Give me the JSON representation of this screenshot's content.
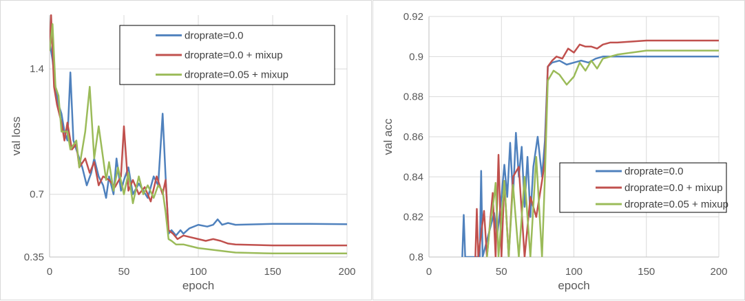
{
  "chart_data": [
    {
      "type": "line",
      "xlabel": "epoch",
      "ylabel": "val loss",
      "xlim": [
        0,
        200
      ],
      "ylim": [
        0.35,
        1.7
      ],
      "x_ticks": [
        "0",
        "50",
        "100",
        "150",
        "200"
      ],
      "y_ticks": [
        "0.35",
        "0.7",
        "1.4"
      ],
      "x_tick_values": [
        0,
        50,
        100,
        150,
        200
      ],
      "y_tick_values": [
        0.35,
        0.7,
        1.4
      ],
      "grid": true,
      "legend_position": "top-right",
      "series": [
        {
          "name": "droprate=0.0",
          "color": "#4f81bd",
          "points": [
            [
              0,
              1.55
            ],
            [
              2,
              1.45
            ],
            [
              4,
              1.3
            ],
            [
              6,
              1.2
            ],
            [
              8,
              1.15
            ],
            [
              10,
              1.05
            ],
            [
              12,
              1.0
            ],
            [
              14,
              1.38
            ],
            [
              16,
              1.0
            ],
            [
              18,
              0.95
            ],
            [
              20,
              0.9
            ],
            [
              22,
              0.85
            ],
            [
              25,
              0.75
            ],
            [
              28,
              0.82
            ],
            [
              30,
              0.9
            ],
            [
              33,
              0.8
            ],
            [
              36,
              0.75
            ],
            [
              38,
              0.68
            ],
            [
              40,
              0.8
            ],
            [
              43,
              0.7
            ],
            [
              45,
              0.9
            ],
            [
              48,
              0.72
            ],
            [
              50,
              0.78
            ],
            [
              53,
              0.85
            ],
            [
              56,
              0.7
            ],
            [
              60,
              0.76
            ],
            [
              63,
              0.72
            ],
            [
              66,
              0.68
            ],
            [
              70,
              0.8
            ],
            [
              73,
              0.75
            ],
            [
              76,
              1.15
            ],
            [
              78,
              0.8
            ],
            [
              80,
              0.48
            ],
            [
              82,
              0.5
            ],
            [
              85,
              0.47
            ],
            [
              88,
              0.5
            ],
            [
              90,
              0.48
            ],
            [
              94,
              0.51
            ],
            [
              100,
              0.53
            ],
            [
              106,
              0.52
            ],
            [
              110,
              0.53
            ],
            [
              113,
              0.56
            ],
            [
              116,
              0.53
            ],
            [
              120,
              0.54
            ],
            [
              125,
              0.53
            ],
            [
              150,
              0.535
            ],
            [
              175,
              0.535
            ],
            [
              200,
              0.533
            ]
          ]
        },
        {
          "name": "droprate=0.0 + mixup",
          "color": "#c0504d",
          "points": [
            [
              0,
              1.5
            ],
            [
              1,
              1.7
            ],
            [
              3,
              1.3
            ],
            [
              5,
              1.2
            ],
            [
              8,
              1.1
            ],
            [
              10,
              1.0
            ],
            [
              12,
              1.1
            ],
            [
              15,
              0.95
            ],
            [
              18,
              0.98
            ],
            [
              20,
              0.85
            ],
            [
              24,
              0.9
            ],
            [
              27,
              0.82
            ],
            [
              30,
              0.88
            ],
            [
              33,
              0.75
            ],
            [
              36,
              0.8
            ],
            [
              40,
              0.78
            ],
            [
              44,
              0.74
            ],
            [
              48,
              0.8
            ],
            [
              50,
              1.08
            ],
            [
              53,
              0.72
            ],
            [
              56,
              0.78
            ],
            [
              60,
              0.7
            ],
            [
              64,
              0.74
            ],
            [
              68,
              0.66
            ],
            [
              72,
              0.8
            ],
            [
              76,
              0.7
            ],
            [
              78,
              0.78
            ],
            [
              80,
              0.5
            ],
            [
              83,
              0.48
            ],
            [
              86,
              0.45
            ],
            [
              90,
              0.47
            ],
            [
              95,
              0.46
            ],
            [
              100,
              0.45
            ],
            [
              105,
              0.44
            ],
            [
              110,
              0.45
            ],
            [
              115,
              0.44
            ],
            [
              120,
              0.425
            ],
            [
              125,
              0.42
            ],
            [
              150,
              0.415
            ],
            [
              175,
              0.415
            ],
            [
              200,
              0.415
            ]
          ]
        },
        {
          "name": "droprate=0.05 + mixup",
          "color": "#9bbb59",
          "points": [
            [
              0,
              1.5
            ],
            [
              2,
              1.65
            ],
            [
              4,
              1.3
            ],
            [
              6,
              1.25
            ],
            [
              8,
              1.05
            ],
            [
              10,
              1.05
            ],
            [
              12,
              1.05
            ],
            [
              14,
              0.95
            ],
            [
              18,
              1.0
            ],
            [
              20,
              0.85
            ],
            [
              24,
              1.05
            ],
            [
              27,
              1.3
            ],
            [
              30,
              0.9
            ],
            [
              33,
              1.08
            ],
            [
              36,
              0.9
            ],
            [
              38,
              0.78
            ],
            [
              40,
              0.88
            ],
            [
              43,
              0.72
            ],
            [
              46,
              0.85
            ],
            [
              50,
              0.7
            ],
            [
              53,
              0.82
            ],
            [
              56,
              0.65
            ],
            [
              60,
              0.8
            ],
            [
              63,
              0.7
            ],
            [
              66,
              0.75
            ],
            [
              70,
              0.68
            ],
            [
              73,
              0.75
            ],
            [
              76,
              0.72
            ],
            [
              78,
              0.6
            ],
            [
              80,
              0.45
            ],
            [
              82,
              0.44
            ],
            [
              85,
              0.42
            ],
            [
              90,
              0.42
            ],
            [
              95,
              0.41
            ],
            [
              100,
              0.4
            ],
            [
              110,
              0.39
            ],
            [
              120,
              0.38
            ],
            [
              125,
              0.375
            ],
            [
              150,
              0.37
            ],
            [
              175,
              0.37
            ],
            [
              200,
              0.37
            ]
          ]
        }
      ]
    },
    {
      "type": "line",
      "xlabel": "epoch",
      "ylabel": "val acc",
      "xlim": [
        0,
        200
      ],
      "ylim": [
        0.8,
        0.92
      ],
      "x_ticks": [
        "0",
        "50",
        "100",
        "150",
        "200"
      ],
      "y_ticks": [
        "0.8",
        "0.82",
        "0.84",
        "0.86",
        "0.88",
        "0.9",
        "0.92"
      ],
      "x_tick_values": [
        0,
        50,
        100,
        150,
        200
      ],
      "y_tick_values": [
        0.8,
        0.82,
        0.84,
        0.86,
        0.88,
        0.9,
        0.92
      ],
      "grid": true,
      "legend_position": "bottom-right",
      "series": [
        {
          "name": "droprate=0.0",
          "color": "#4f81bd",
          "points": [
            [
              23,
              0.8
            ],
            [
              24,
              0.821
            ],
            [
              25,
              0.8
            ],
            [
              35,
              0.8
            ],
            [
              36,
              0.843
            ],
            [
              37,
              0.8
            ],
            [
              45,
              0.822
            ],
            [
              47,
              0.81
            ],
            [
              50,
              0.83
            ],
            [
              52,
              0.846
            ],
            [
              54,
              0.83
            ],
            [
              56,
              0.857
            ],
            [
              58,
              0.83
            ],
            [
              60,
              0.862
            ],
            [
              62,
              0.84
            ],
            [
              64,
              0.855
            ],
            [
              66,
              0.825
            ],
            [
              68,
              0.85
            ],
            [
              70,
              0.82
            ],
            [
              72,
              0.845
            ],
            [
              75,
              0.86
            ],
            [
              78,
              0.84
            ],
            [
              80,
              0.858
            ],
            [
              82,
              0.895
            ],
            [
              85,
              0.897
            ],
            [
              90,
              0.898
            ],
            [
              95,
              0.896
            ],
            [
              100,
              0.897
            ],
            [
              105,
              0.898
            ],
            [
              110,
              0.897
            ],
            [
              115,
              0.899
            ],
            [
              120,
              0.9
            ],
            [
              130,
              0.9
            ],
            [
              140,
              0.9
            ],
            [
              150,
              0.9
            ],
            [
              175,
              0.9
            ],
            [
              200,
              0.9
            ]
          ]
        },
        {
          "name": "droprate=0.0 + mixup",
          "color": "#c0504d",
          "points": [
            [
              32,
              0.8
            ],
            [
              33,
              0.824
            ],
            [
              34,
              0.8
            ],
            [
              38,
              0.823
            ],
            [
              40,
              0.8
            ],
            [
              44,
              0.832
            ],
            [
              46,
              0.8
            ],
            [
              48,
              0.851
            ],
            [
              50,
              0.8
            ],
            [
              52,
              0.838
            ],
            [
              55,
              0.8
            ],
            [
              58,
              0.84
            ],
            [
              62,
              0.845
            ],
            [
              66,
              0.8
            ],
            [
              70,
              0.83
            ],
            [
              74,
              0.82
            ],
            [
              78,
              0.838
            ],
            [
              80,
              0.848
            ],
            [
              82,
              0.895
            ],
            [
              85,
              0.898
            ],
            [
              88,
              0.9
            ],
            [
              92,
              0.899
            ],
            [
              96,
              0.904
            ],
            [
              100,
              0.902
            ],
            [
              104,
              0.906
            ],
            [
              108,
              0.905
            ],
            [
              112,
              0.905
            ],
            [
              116,
              0.904
            ],
            [
              120,
              0.906
            ],
            [
              125,
              0.907
            ],
            [
              130,
              0.907
            ],
            [
              150,
              0.908
            ],
            [
              175,
              0.908
            ],
            [
              200,
              0.908
            ]
          ]
        },
        {
          "name": "droprate=0.05 + mixup",
          "color": "#9bbb59",
          "points": [
            [
              40,
              0.8
            ],
            [
              42,
              0.815
            ],
            [
              45,
              0.83
            ],
            [
              46,
              0.837
            ],
            [
              48,
              0.8
            ],
            [
              52,
              0.838
            ],
            [
              55,
              0.8
            ],
            [
              58,
              0.836
            ],
            [
              62,
              0.8
            ],
            [
              66,
              0.84
            ],
            [
              70,
              0.8
            ],
            [
              74,
              0.85
            ],
            [
              78,
              0.8
            ],
            [
              80,
              0.84
            ],
            [
              82,
              0.888
            ],
            [
              86,
              0.893
            ],
            [
              90,
              0.891
            ],
            [
              95,
              0.886
            ],
            [
              100,
              0.89
            ],
            [
              104,
              0.897
            ],
            [
              108,
              0.893
            ],
            [
              112,
              0.898
            ],
            [
              116,
              0.894
            ],
            [
              120,
              0.899
            ],
            [
              130,
              0.901
            ],
            [
              140,
              0.902
            ],
            [
              150,
              0.903
            ],
            [
              175,
              0.903
            ],
            [
              200,
              0.903
            ]
          ]
        }
      ]
    }
  ]
}
